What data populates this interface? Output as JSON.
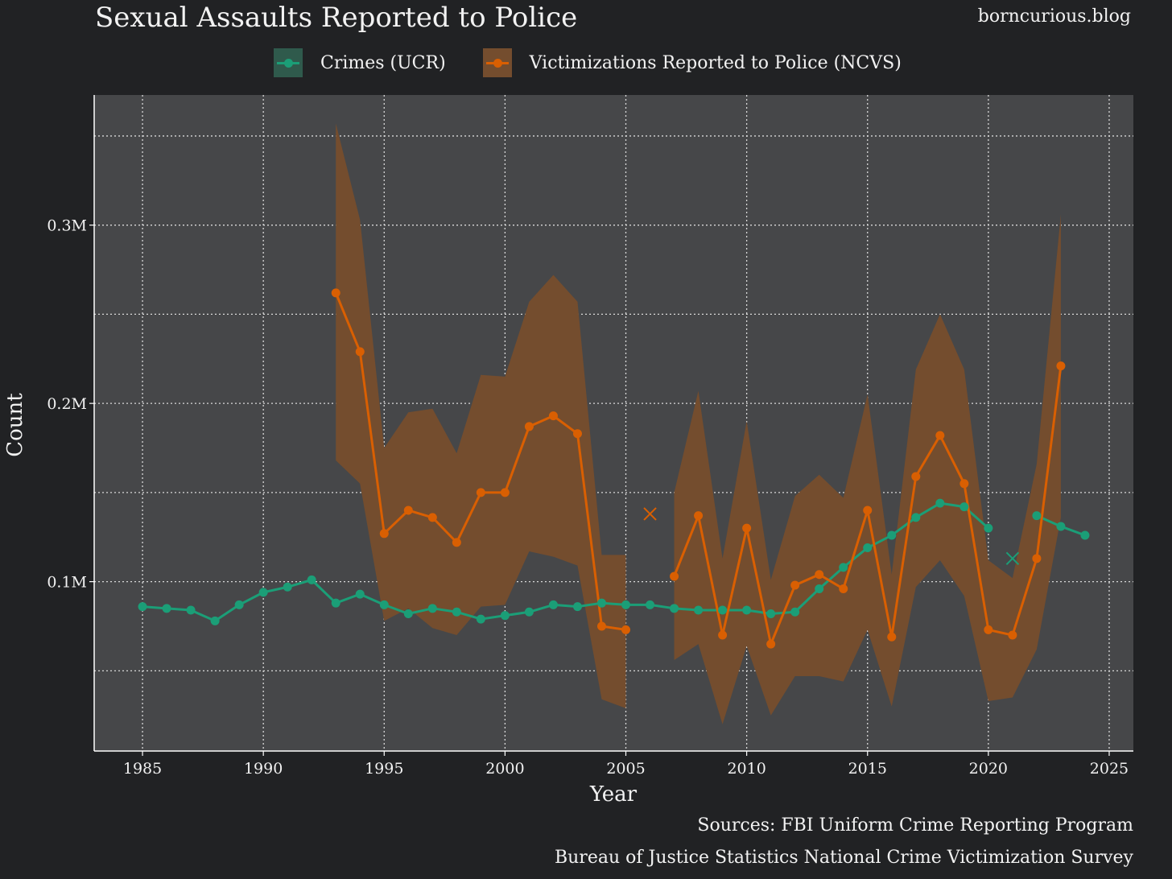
{
  "title": "Sexual Assaults Reported to Police",
  "site": "borncurious.blog",
  "sources": [
    "Sources: FBI Uniform Crime Reporting Program",
    "Bureau of Justice Statistics National Crime Victimization Survey"
  ],
  "colors": {
    "background": "#212224",
    "panel": "#464749",
    "grid": "#d9d9d9",
    "ucr": "#1b9e77",
    "ncvs": "#d95f02",
    "ribbon": "#744d2e"
  },
  "chart_data": {
    "type": "line",
    "xlabel": "Year",
    "ylabel": "Count",
    "xlim": [
      1983,
      2026
    ],
    "ylim": [
      5000,
      373000
    ],
    "x_ticks": [
      1985,
      1990,
      1995,
      2000,
      2005,
      2010,
      2015,
      2020,
      2025
    ],
    "x_tick_labels": [
      "1985",
      "1990",
      "1995",
      "2000",
      "2005",
      "2010",
      "2015",
      "2020",
      "2025"
    ],
    "y_ticks": [
      100000,
      200000,
      300000
    ],
    "y_tick_labels": [
      "0.1M",
      "0.2M",
      "0.3M"
    ],
    "y_minor_grid": [
      50000,
      150000,
      250000,
      350000
    ],
    "legend_position": "top",
    "series": [
      {
        "name": "Crimes (UCR)",
        "color": "#1b9e77",
        "points": [
          [
            1985,
            86000
          ],
          [
            1986,
            85000
          ],
          [
            1987,
            84000
          ],
          [
            1988,
            78000
          ],
          [
            1989,
            87000
          ],
          [
            1990,
            94000
          ],
          [
            1991,
            97000
          ],
          [
            1992,
            101000
          ],
          [
            1993,
            88000
          ],
          [
            1994,
            93000
          ],
          [
            1995,
            87000
          ],
          [
            1996,
            82000
          ],
          [
            1997,
            85000
          ],
          [
            1998,
            83000
          ],
          [
            1999,
            79000
          ],
          [
            2000,
            81000
          ],
          [
            2001,
            83000
          ],
          [
            2002,
            87000
          ],
          [
            2003,
            86000
          ],
          [
            2004,
            88000
          ],
          [
            2005,
            87000
          ],
          [
            2006,
            87000
          ],
          [
            2007,
            85000
          ],
          [
            2008,
            84000
          ],
          [
            2009,
            84000
          ],
          [
            2010,
            84000
          ],
          [
            2011,
            82000
          ],
          [
            2012,
            83000
          ],
          [
            2013,
            96000
          ],
          [
            2014,
            108000
          ],
          [
            2015,
            119000
          ],
          [
            2016,
            126000
          ],
          [
            2017,
            136000
          ],
          [
            2018,
            144000
          ],
          [
            2019,
            142000
          ],
          [
            2020,
            130000
          ],
          null,
          [
            2022,
            137000
          ],
          [
            2023,
            131000
          ],
          [
            2024,
            126000
          ]
        ],
        "missing_markers": [
          [
            2021,
            113000
          ]
        ]
      },
      {
        "name": "Victimizations Reported to Police (NCVS)",
        "color": "#d95f02",
        "points": [
          [
            1993,
            262000
          ],
          [
            1994,
            229000
          ],
          [
            1995,
            127000
          ],
          [
            1996,
            140000
          ],
          [
            1997,
            136000
          ],
          [
            1998,
            122000
          ],
          [
            1999,
            150000
          ],
          [
            2000,
            150000
          ],
          [
            2001,
            187000
          ],
          [
            2002,
            193000
          ],
          [
            2003,
            183000
          ],
          [
            2004,
            75000
          ],
          [
            2005,
            73000
          ],
          null,
          [
            2007,
            103000
          ],
          [
            2008,
            137000
          ],
          [
            2009,
            70000
          ],
          [
            2010,
            130000
          ],
          [
            2011,
            65000
          ],
          [
            2012,
            98000
          ],
          [
            2013,
            104000
          ],
          [
            2014,
            96000
          ],
          [
            2015,
            140000
          ],
          [
            2016,
            69000
          ],
          [
            2017,
            159000
          ],
          [
            2018,
            182000
          ],
          [
            2019,
            155000
          ],
          [
            2020,
            73000
          ],
          [
            2021,
            70000
          ],
          [
            2022,
            113000
          ],
          [
            2023,
            221000
          ]
        ],
        "missing_markers": [
          [
            2006,
            138000
          ]
        ],
        "confidence_band": [
          [
            [
              1993,
              168000,
              357000
            ],
            [
              1994,
              155000,
              303000
            ],
            [
              1995,
              78000,
              175000
            ],
            [
              1996,
              85000,
              195000
            ],
            [
              1997,
              74000,
              197000
            ],
            [
              1998,
              70000,
              172000
            ],
            [
              1999,
              86000,
              216000
            ],
            [
              2000,
              87000,
              215000
            ],
            [
              2001,
              117000,
              257000
            ],
            [
              2002,
              114000,
              272000
            ],
            [
              2003,
              109000,
              257000
            ],
            [
              2004,
              34000,
              115000
            ],
            [
              2005,
              29000,
              115000
            ]
          ],
          [
            [
              2007,
              56000,
              150000
            ],
            [
              2008,
              65000,
              207000
            ],
            [
              2009,
              20000,
              113000
            ],
            [
              2010,
              64000,
              190000
            ],
            [
              2011,
              25000,
              101000
            ],
            [
              2012,
              47000,
              148000
            ],
            [
              2013,
              47000,
              160000
            ],
            [
              2014,
              44000,
              147000
            ],
            [
              2015,
              73000,
              205000
            ],
            [
              2016,
              30000,
              104000
            ],
            [
              2017,
              97000,
              219000
            ],
            [
              2018,
              112000,
              250000
            ],
            [
              2019,
              92000,
              219000
            ],
            [
              2020,
              33000,
              112000
            ],
            [
              2021,
              35000,
              102000
            ],
            [
              2022,
              62000,
              166000
            ],
            [
              2023,
              136000,
              306000
            ]
          ]
        ]
      }
    ]
  }
}
